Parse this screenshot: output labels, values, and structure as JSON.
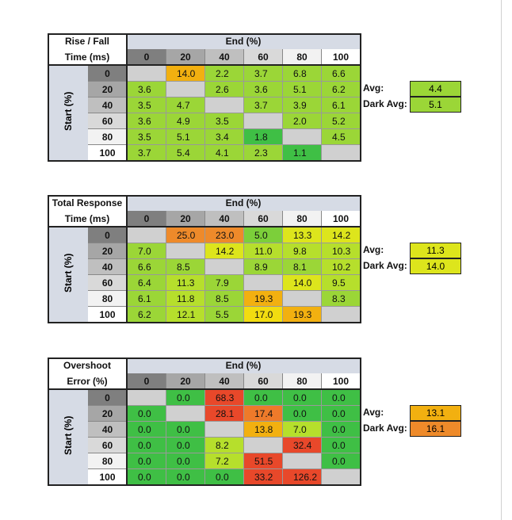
{
  "tables": [
    {
      "label_line1": "Rise / Fall",
      "label_line2": "Time (ms)",
      "end_header": "End (%)",
      "start_header": "Start (%)",
      "cols": [
        "0",
        "20",
        "40",
        "60",
        "80",
        "100"
      ],
      "rows": [
        "0",
        "20",
        "40",
        "60",
        "80",
        "100"
      ],
      "values": [
        [
          "",
          "14.0",
          "2.2",
          "3.7",
          "6.8",
          "6.6"
        ],
        [
          "3.6",
          "",
          "2.6",
          "3.6",
          "5.1",
          "6.2"
        ],
        [
          "3.5",
          "4.7",
          "",
          "3.7",
          "3.9",
          "6.1"
        ],
        [
          "3.6",
          "4.9",
          "3.5",
          "",
          "2.0",
          "5.2"
        ],
        [
          "3.5",
          "5.1",
          "3.4",
          "1.8",
          "",
          "4.5"
        ],
        [
          "3.7",
          "5.4",
          "4.1",
          "2.3",
          "1.1",
          ""
        ]
      ],
      "colors": [
        [
          "#d0d0d0",
          "#f2b010",
          "#9bd637",
          "#9bd637",
          "#9bd637",
          "#9bd637"
        ],
        [
          "#9bd637",
          "#d0d0d0",
          "#9bd637",
          "#9bd637",
          "#9bd637",
          "#9bd637"
        ],
        [
          "#9bd637",
          "#9bd637",
          "#d0d0d0",
          "#9bd637",
          "#9bd637",
          "#9bd637"
        ],
        [
          "#9bd637",
          "#9bd637",
          "#9bd637",
          "#d0d0d0",
          "#9bd637",
          "#9bd637"
        ],
        [
          "#9bd637",
          "#9bd637",
          "#9bd637",
          "#3fbf45",
          "#d0d0d0",
          "#9bd637"
        ],
        [
          "#9bd637",
          "#9bd637",
          "#9bd637",
          "#9bd637",
          "#3fbf45",
          "#d0d0d0"
        ]
      ],
      "avg_label": "Avg:",
      "avg_value": "4.4",
      "avg_color": "#9bd637",
      "dark_avg_label": "Dark Avg:",
      "dark_avg_value": "5.1",
      "dark_avg_color": "#9bd637"
    },
    {
      "label_line1": "Total Response",
      "label_line2": "Time (ms)",
      "end_header": "End (%)",
      "start_header": "Start (%)",
      "cols": [
        "0",
        "20",
        "40",
        "60",
        "80",
        "100"
      ],
      "rows": [
        "0",
        "20",
        "40",
        "60",
        "80",
        "100"
      ],
      "values": [
        [
          "",
          "25.0",
          "23.0",
          "5.0",
          "13.3",
          "14.2"
        ],
        [
          "7.0",
          "",
          "14.2",
          "11.0",
          "9.8",
          "10.3"
        ],
        [
          "6.6",
          "8.5",
          "",
          "8.9",
          "8.1",
          "10.2"
        ],
        [
          "6.4",
          "11.3",
          "7.9",
          "",
          "14.0",
          "9.5"
        ],
        [
          "6.1",
          "11.8",
          "8.5",
          "19.3",
          "",
          "8.3"
        ],
        [
          "6.2",
          "12.1",
          "5.5",
          "17.0",
          "19.3",
          ""
        ]
      ],
      "colors": [
        [
          "#d0d0d0",
          "#ee8a2a",
          "#ee8a2a",
          "#7ccf3a",
          "#dde51c",
          "#dde51c"
        ],
        [
          "#9bd637",
          "#d0d0d0",
          "#dde51c",
          "#b6df2c",
          "#b6df2c",
          "#b6df2c"
        ],
        [
          "#9bd637",
          "#9bd637",
          "#d0d0d0",
          "#9bd637",
          "#9bd637",
          "#b6df2c"
        ],
        [
          "#9bd637",
          "#b6df2c",
          "#9bd637",
          "#d0d0d0",
          "#dde51c",
          "#b6df2c"
        ],
        [
          "#9bd637",
          "#b6df2c",
          "#9bd637",
          "#f2b010",
          "#d0d0d0",
          "#9bd637"
        ],
        [
          "#9bd637",
          "#b6df2c",
          "#9bd637",
          "#f2dc10",
          "#f2b010",
          "#d0d0d0"
        ]
      ],
      "avg_label": "Avg:",
      "avg_value": "11.3",
      "avg_color": "#dde51c",
      "dark_avg_label": "Dark Avg:",
      "dark_avg_value": "14.0",
      "dark_avg_color": "#dde51c"
    },
    {
      "label_line1": "Overshoot",
      "label_line2": "Error (%)",
      "end_header": "End (%)",
      "start_header": "Start (%)",
      "cols": [
        "0",
        "20",
        "40",
        "60",
        "80",
        "100"
      ],
      "rows": [
        "0",
        "20",
        "40",
        "60",
        "80",
        "100"
      ],
      "values": [
        [
          "",
          "0.0",
          "68.3",
          "0.0",
          "0.0",
          "0.0"
        ],
        [
          "0.0",
          "",
          "28.1",
          "17.4",
          "0.0",
          "0.0"
        ],
        [
          "0.0",
          "0.0",
          "",
          "13.8",
          "7.0",
          "0.0"
        ],
        [
          "0.0",
          "0.0",
          "8.2",
          "",
          "32.4",
          "0.0"
        ],
        [
          "0.0",
          "0.0",
          "7.2",
          "51.5",
          "",
          "0.0"
        ],
        [
          "0.0",
          "0.0",
          "0.0",
          "33.2",
          "126.2",
          ""
        ]
      ],
      "colors": [
        [
          "#d0d0d0",
          "#3fbf45",
          "#e8482a",
          "#3fbf45",
          "#3fbf45",
          "#3fbf45"
        ],
        [
          "#3fbf45",
          "#d0d0d0",
          "#e8482a",
          "#ee7a2a",
          "#3fbf45",
          "#3fbf45"
        ],
        [
          "#3fbf45",
          "#3fbf45",
          "#d0d0d0",
          "#f2b010",
          "#b6df2c",
          "#3fbf45"
        ],
        [
          "#3fbf45",
          "#3fbf45",
          "#b6df2c",
          "#d0d0d0",
          "#e8482a",
          "#3fbf45"
        ],
        [
          "#3fbf45",
          "#3fbf45",
          "#b6df2c",
          "#e8482a",
          "#d0d0d0",
          "#3fbf45"
        ],
        [
          "#3fbf45",
          "#3fbf45",
          "#3fbf45",
          "#e8482a",
          "#e8482a",
          "#d0d0d0"
        ]
      ],
      "avg_label": "Avg:",
      "avg_value": "13.1",
      "avg_color": "#f2b010",
      "dark_avg_label": "Dark Avg:",
      "dark_avg_value": "16.1",
      "dark_avg_color": "#ee8a2a"
    }
  ],
  "header_shades": [
    "#7f7f7f",
    "#a6a6a6",
    "#bfbfbf",
    "#d9d9d9",
    "#f2f2f2",
    "#ffffff"
  ]
}
